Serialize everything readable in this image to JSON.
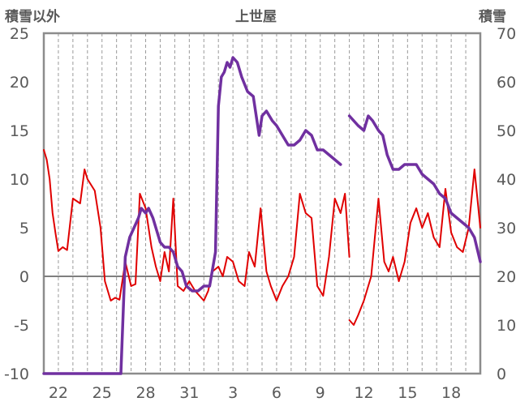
{
  "chart_data": {
    "type": "line",
    "title": "上世屋",
    "left_axis_label": "積雪以外",
    "right_axis_label": "積雪",
    "x_tick_labels": [
      "22",
      "25",
      "28",
      "31",
      "3",
      "6",
      "9",
      "12",
      "15",
      "18"
    ],
    "x_range_days": [
      0,
      30
    ],
    "ylim_left": [
      -10,
      25
    ],
    "yticks_left": [
      -10,
      -5,
      0,
      5,
      10,
      15,
      20,
      25
    ],
    "ylim_right": [
      0,
      70
    ],
    "yticks_right": [
      0,
      10,
      20,
      30,
      40,
      50,
      60,
      70
    ],
    "grid": "vertical dashed, daily",
    "series": [
      {
        "axis": "left",
        "color": "#e00000",
        "x": [
          0,
          0.2,
          0.4,
          0.6,
          0.8,
          1.0,
          1.3,
          1.6,
          2.0,
          2.5,
          2.8,
          3.0,
          3.5,
          3.9,
          4.2,
          4.6,
          4.9,
          5.2,
          5.6,
          6.0,
          6.3,
          6.6,
          7.0,
          7.4,
          7.7,
          8.0,
          8.3,
          8.6,
          8.9,
          9.2,
          9.6,
          10.0,
          10.4,
          10.7,
          11.0,
          11.3,
          11.6,
          12.0,
          12.3,
          12.6,
          13.0,
          13.4,
          13.8,
          14.1,
          14.5,
          14.9,
          15.3,
          15.6,
          16.0,
          16.4,
          16.8,
          17.2,
          17.6,
          18.0,
          18.4,
          18.8,
          19.2,
          19.6,
          20.0,
          20.4,
          20.7,
          21.0
        ],
        "values": [
          13,
          12,
          10,
          6.5,
          4.5,
          2.6,
          3.0,
          2.7,
          8.0,
          7.5,
          11.0,
          10.0,
          8.8,
          5.0,
          -0.5,
          -2.5,
          -2.2,
          -2.4,
          1.5,
          -1.0,
          -0.8,
          8.5,
          7.0,
          3.0,
          1.0,
          -0.5,
          2.5,
          0.5,
          8.0,
          -1.0,
          -1.5,
          -0.5,
          -1.5,
          -2.0,
          -2.5,
          -1.5,
          0.5,
          1.0,
          0.0,
          2.0,
          1.5,
          -0.5,
          -1.0,
          2.5,
          1.0,
          7.0,
          0.5,
          -1.0,
          -2.5,
          -1.0,
          0.0,
          2.0,
          8.5,
          6.5,
          6.0,
          -1.0,
          -2.0,
          2.0,
          8.0,
          6.5,
          8.5,
          2.0
        ]
      },
      {
        "axis": "left",
        "color": "#e00000",
        "x": [
          21.0,
          21.3,
          21.6,
          22.0,
          22.5,
          23.0,
          23.4,
          23.7,
          24.0,
          24.4,
          24.8,
          25.2,
          25.6,
          26.0,
          26.4,
          26.8,
          27.2,
          27.6,
          28.0,
          28.4,
          28.8,
          29.2,
          29.6,
          30.0
        ],
        "values": [
          -4.5,
          -5.0,
          -4.0,
          -2.5,
          0.0,
          8.0,
          1.5,
          0.5,
          2.0,
          -0.5,
          1.5,
          5.5,
          7.0,
          5.0,
          6.5,
          4.0,
          3.0,
          9.0,
          4.5,
          3.0,
          2.5,
          5.0,
          11.0,
          5.0
        ]
      },
      {
        "axis": "right",
        "color": "#7030a0",
        "x": [
          0,
          5.0,
          5.3,
          5.6,
          5.9,
          6.2,
          6.5,
          6.7,
          7.0,
          7.2,
          7.5,
          7.8,
          8.0,
          8.3,
          8.6,
          8.9,
          9.2,
          9.5,
          9.8,
          10.2,
          10.6,
          11.0,
          11.4,
          11.8,
          12.0,
          12.2,
          12.4,
          12.6,
          12.8,
          13.0,
          13.3,
          13.6,
          14.0,
          14.4,
          14.8,
          15.0,
          15.3,
          15.7,
          16.0,
          16.4,
          16.8,
          17.2,
          17.6,
          18.0,
          18.4,
          18.8,
          19.2,
          19.6,
          20.0,
          20.4
        ],
        "values": [
          0,
          0,
          0,
          24,
          28,
          30,
          32,
          34,
          33,
          34,
          32,
          29,
          27,
          26,
          26,
          25,
          22,
          21,
          18,
          17,
          17,
          18,
          18,
          25,
          55,
          61,
          62,
          64,
          63,
          65,
          64,
          61,
          58,
          57,
          49,
          53,
          54,
          52,
          51,
          49,
          47,
          47,
          48,
          50,
          49,
          46,
          46,
          45,
          44,
          43
        ]
      },
      {
        "axis": "right",
        "color": "#7030a0",
        "x": [
          21.0,
          21.3,
          21.6,
          22.0,
          22.3,
          22.6,
          23.0,
          23.3,
          23.6,
          24.0,
          24.4,
          24.8,
          25.2,
          25.6,
          26.0,
          26.4,
          26.8,
          27.2,
          27.6,
          28.0,
          28.4,
          28.8,
          29.2,
          29.6,
          30.0
        ],
        "values": [
          53,
          52,
          51,
          50,
          53,
          52,
          50,
          49,
          45,
          42,
          42,
          43,
          43,
          43,
          41,
          40,
          39,
          37,
          36,
          33,
          32,
          31,
          30,
          28,
          23
        ]
      }
    ]
  }
}
